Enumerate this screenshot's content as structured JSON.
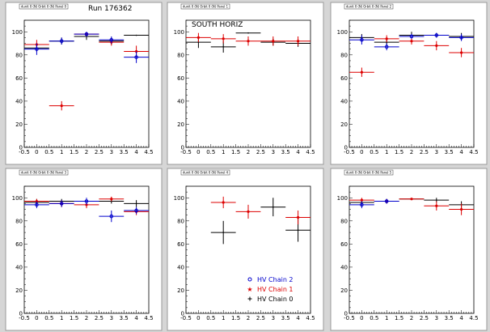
{
  "run_label": "Run 176362",
  "legend": [
    {
      "label": "HV Chain 2",
      "color": "#0000cc",
      "marker": "circle"
    },
    {
      "label": "HV Chain 1",
      "color": "#dd0000",
      "marker": "star"
    },
    {
      "label": "HV Chain 0",
      "color": "#000000",
      "marker": "plus"
    }
  ],
  "chart_data": [
    {
      "type": "scatter",
      "pad_title": "dunit 0 (N) Orbit 0 (N) Panel 0",
      "annotation": "Run 176362",
      "xlim": [
        -0.5,
        4.5
      ],
      "ylim": [
        0,
        110
      ],
      "xticks": [
        "-0.5",
        "0",
        "0.5",
        "1",
        "1.5",
        "2",
        "2.5",
        "3",
        "3.5",
        "4",
        "4.5"
      ],
      "yticks": [
        "0",
        "20",
        "40",
        "60",
        "80",
        "100"
      ],
      "series": [
        {
          "color": "#000000",
          "points": [
            {
              "x": 0,
              "y": 86,
              "ex": 0.5,
              "ey": 3
            },
            {
              "x": 1,
              "y": 92,
              "ex": 0.5,
              "ey": 3
            },
            {
              "x": 2,
              "y": 96,
              "ex": 0.5,
              "ey": 3
            },
            {
              "x": 3,
              "y": 92,
              "ex": 0.5,
              "ey": 3
            },
            {
              "x": 4,
              "y": 97,
              "ex": 0.5,
              "ey": 0
            }
          ]
        },
        {
          "color": "#dd0000",
          "points": [
            {
              "x": 0,
              "y": 89,
              "ex": 0.5,
              "ey": 4
            },
            {
              "x": 1,
              "y": 36,
              "ex": 0.5,
              "ey": 4
            },
            {
              "x": 2,
              "y": 98,
              "ex": 0.5,
              "ey": 2
            },
            {
              "x": 3,
              "y": 91,
              "ex": 0.5,
              "ey": 3
            },
            {
              "x": 4,
              "y": 83,
              "ex": 0.5,
              "ey": 5
            }
          ]
        },
        {
          "color": "#0000cc",
          "points": [
            {
              "x": 0,
              "y": 85,
              "ex": 0.5,
              "ey": 5
            },
            {
              "x": 1,
              "y": 92,
              "ex": 0.5,
              "ey": 3
            },
            {
              "x": 2,
              "y": 98,
              "ex": 0.5,
              "ey": 2
            },
            {
              "x": 3,
              "y": 93,
              "ex": 0.5,
              "ey": 3
            },
            {
              "x": 4,
              "y": 78,
              "ex": 0.5,
              "ey": 5
            }
          ]
        }
      ]
    },
    {
      "type": "scatter",
      "pad_title": "dunit 0 (N) Orbit 0 (N) Panel 1",
      "annotation": "SOUTH HORIZ",
      "xlim": [
        -0.5,
        4.5
      ],
      "ylim": [
        0,
        110
      ],
      "xticks": [
        "-0.5",
        "0",
        "0.5",
        "1",
        "1.5",
        "2",
        "2.5",
        "3",
        "3.5",
        "4",
        "4.5"
      ],
      "yticks": [
        "0",
        "20",
        "40",
        "60",
        "80",
        "100"
      ],
      "series": [
        {
          "color": "#000000",
          "points": [
            {
              "x": 0,
              "y": 91,
              "ex": 0.5,
              "ey": 5
            },
            {
              "x": 1,
              "y": 87,
              "ex": 0.5,
              "ey": 5
            },
            {
              "x": 2,
              "y": 99,
              "ex": 0.5,
              "ey": 0
            },
            {
              "x": 3,
              "y": 91,
              "ex": 0.5,
              "ey": 3
            },
            {
              "x": 4,
              "y": 90,
              "ex": 0.5,
              "ey": 3
            }
          ]
        },
        {
          "color": "#dd0000",
          "points": [
            {
              "x": 0,
              "y": 95,
              "ex": 0.5,
              "ey": 4
            },
            {
              "x": 1,
              "y": 94,
              "ex": 0.5,
              "ey": 4
            },
            {
              "x": 2,
              "y": 92,
              "ex": 0.5,
              "ey": 4
            },
            {
              "x": 3,
              "y": 92,
              "ex": 0.5,
              "ey": 4
            },
            {
              "x": 4,
              "y": 92,
              "ex": 0.5,
              "ey": 4
            }
          ]
        }
      ]
    },
    {
      "type": "scatter",
      "pad_title": "dunit 0 (N) Orbit 0 (N) Panel 2",
      "xlim": [
        -0.5,
        4.5
      ],
      "ylim": [
        0,
        110
      ],
      "xticks": [
        "-0.5",
        "0",
        "0.5",
        "1",
        "1.5",
        "2",
        "2.5",
        "3",
        "3.5",
        "4",
        "4.5"
      ],
      "yticks": [
        "0",
        "20",
        "40",
        "60",
        "80",
        "100"
      ],
      "series": [
        {
          "color": "#000000",
          "points": [
            {
              "x": 0,
              "y": 95,
              "ex": 0.5,
              "ey": 3
            },
            {
              "x": 1,
              "y": 91,
              "ex": 0.5,
              "ey": 3
            },
            {
              "x": 2,
              "y": 97,
              "ex": 0.5,
              "ey": 3
            },
            {
              "x": 3,
              "y": 97,
              "ex": 0.5,
              "ey": 2
            },
            {
              "x": 4,
              "y": 96,
              "ex": 0.5,
              "ey": 3
            }
          ]
        },
        {
          "color": "#dd0000",
          "points": [
            {
              "x": 0,
              "y": 65,
              "ex": 0.5,
              "ey": 4
            },
            {
              "x": 1,
              "y": 94,
              "ex": 0.5,
              "ey": 3
            },
            {
              "x": 2,
              "y": 92,
              "ex": 0.5,
              "ey": 3
            },
            {
              "x": 3,
              "y": 88,
              "ex": 0.5,
              "ey": 4
            },
            {
              "x": 4,
              "y": 82,
              "ex": 0.5,
              "ey": 4
            }
          ]
        },
        {
          "color": "#0000cc",
          "points": [
            {
              "x": 0,
              "y": 93,
              "ex": 0.5,
              "ey": 4
            },
            {
              "x": 1,
              "y": 87,
              "ex": 0.5,
              "ey": 3
            },
            {
              "x": 2,
              "y": 96,
              "ex": 0.5,
              "ey": 2
            },
            {
              "x": 3,
              "y": 97,
              "ex": 0.5,
              "ey": 2
            },
            {
              "x": 4,
              "y": 95,
              "ex": 0.5,
              "ey": 3
            }
          ]
        }
      ]
    },
    {
      "type": "scatter",
      "pad_title": "dunit 0 (N) Orbit 0 (N) Panel 3",
      "xlim": [
        -0.5,
        4.5
      ],
      "ylim": [
        0,
        110
      ],
      "xticks": [
        "-0.5",
        "0",
        "0.5",
        "1",
        "1.5",
        "2",
        "2.5",
        "3",
        "3.5",
        "4",
        "4.5"
      ],
      "yticks": [
        "0",
        "20",
        "40",
        "60",
        "80",
        "100"
      ],
      "series": [
        {
          "color": "#000000",
          "points": [
            {
              "x": 0,
              "y": 96,
              "ex": 0.5,
              "ey": 3
            },
            {
              "x": 1,
              "y": 97,
              "ex": 0.5,
              "ey": 2
            },
            {
              "x": 2,
              "y": 97,
              "ex": 0.5,
              "ey": 2
            },
            {
              "x": 3,
              "y": 97,
              "ex": 0.5,
              "ey": 2
            },
            {
              "x": 4,
              "y": 95,
              "ex": 0.5,
              "ey": 3
            }
          ]
        },
        {
          "color": "#dd0000",
          "points": [
            {
              "x": 0,
              "y": 97,
              "ex": 0.5,
              "ey": 2
            },
            {
              "x": 1,
              "y": 95,
              "ex": 0.5,
              "ey": 3
            },
            {
              "x": 2,
              "y": 94,
              "ex": 0.5,
              "ey": 3
            },
            {
              "x": 3,
              "y": 99,
              "ex": 0.5,
              "ey": 2
            },
            {
              "x": 4,
              "y": 88,
              "ex": 0.5,
              "ey": 3
            }
          ]
        },
        {
          "color": "#0000cc",
          "points": [
            {
              "x": 0,
              "y": 94,
              "ex": 0.5,
              "ey": 3
            },
            {
              "x": 1,
              "y": 95,
              "ex": 0.5,
              "ey": 3
            },
            {
              "x": 2,
              "y": 97,
              "ex": 0.5,
              "ey": 3
            },
            {
              "x": 3,
              "y": 84,
              "ex": 0.5,
              "ey": 5
            },
            {
              "x": 4,
              "y": 89,
              "ex": 0.5,
              "ey": 3
            }
          ]
        }
      ]
    },
    {
      "type": "scatter",
      "pad_title": "dunit 0 (N) Orbit 0 (N) Panel 4",
      "xlim": [
        -0.5,
        4.5
      ],
      "ylim": [
        0,
        110
      ],
      "xticks": [
        "-0.5",
        "0",
        "0.5",
        "1",
        "1.5",
        "2",
        "2.5",
        "3",
        "3.5",
        "4",
        "4.5"
      ],
      "yticks": [
        "0",
        "20",
        "40",
        "60",
        "80",
        "100"
      ],
      "legend_here": true,
      "series": [
        {
          "color": "#000000",
          "points": [
            {
              "x": 1,
              "y": 70,
              "ex": 0.5,
              "ey": 10
            },
            {
              "x": 3,
              "y": 92,
              "ex": 0.5,
              "ey": 8
            },
            {
              "x": 4,
              "y": 72,
              "ex": 0.5,
              "ey": 10
            }
          ]
        },
        {
          "color": "#dd0000",
          "points": [
            {
              "x": 1,
              "y": 96,
              "ex": 0.5,
              "ey": 5
            },
            {
              "x": 2,
              "y": 88,
              "ex": 0.5,
              "ey": 6
            },
            {
              "x": 4,
              "y": 83,
              "ex": 0.5,
              "ey": 6
            }
          ]
        }
      ]
    },
    {
      "type": "scatter",
      "pad_title": "dunit 0 (N) Orbit 0 (N) Panel 5",
      "xlim": [
        -0.5,
        4.5
      ],
      "ylim": [
        0,
        110
      ],
      "xticks": [
        "-0.5",
        "0",
        "0.5",
        "1",
        "1.5",
        "2",
        "2.5",
        "3",
        "3.5",
        "4",
        "4.5"
      ],
      "yticks": [
        "0",
        "20",
        "40",
        "60",
        "80",
        "100"
      ],
      "series": [
        {
          "color": "#000000",
          "points": [
            {
              "x": 0,
              "y": 96,
              "ex": 0.5,
              "ey": 3
            },
            {
              "x": 1,
              "y": 97,
              "ex": 0.5,
              "ey": 2
            },
            {
              "x": 2,
              "y": 99,
              "ex": 0.5,
              "ey": 0
            },
            {
              "x": 3,
              "y": 98,
              "ex": 0.5,
              "ey": 2
            },
            {
              "x": 4,
              "y": 94,
              "ex": 0.5,
              "ey": 3
            }
          ]
        },
        {
          "color": "#dd0000",
          "points": [
            {
              "x": 0,
              "y": 98,
              "ex": 0.5,
              "ey": 2
            },
            {
              "x": 1,
              "y": 97,
              "ex": 0.5,
              "ey": 2
            },
            {
              "x": 2,
              "y": 99,
              "ex": 0.5,
              "ey": 0
            },
            {
              "x": 3,
              "y": 93,
              "ex": 0.5,
              "ey": 4
            },
            {
              "x": 4,
              "y": 90,
              "ex": 0.5,
              "ey": 5
            }
          ]
        },
        {
          "color": "#0000cc",
          "points": [
            {
              "x": 0,
              "y": 94,
              "ex": 0.5,
              "ey": 3
            },
            {
              "x": 1,
              "y": 97,
              "ex": 0.5,
              "ey": 2
            }
          ]
        }
      ]
    }
  ]
}
